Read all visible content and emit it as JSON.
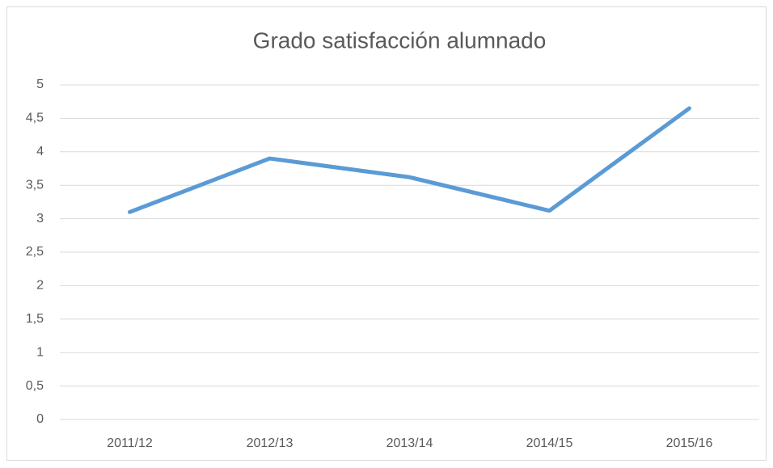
{
  "chart_data": {
    "type": "line",
    "title": "Grado satisfacción alumnado",
    "categories": [
      "2011/12",
      "2012/13",
      "2013/14",
      "2014/15",
      "2015/16"
    ],
    "series": [
      {
        "name": "Grado satisfacción alumnado",
        "color": "#5b9bd5",
        "values": [
          3.1,
          3.9,
          3.62,
          3.12,
          4.65
        ]
      }
    ],
    "ylim": [
      0,
      5
    ],
    "yticks": [
      0,
      {
        "value": 0.5,
        "label": "0,5"
      },
      1,
      {
        "value": 1.5,
        "label": "1,5"
      },
      2,
      {
        "value": 2.5,
        "label": "2,5"
      },
      3,
      {
        "value": 3.5,
        "label": "3,5"
      },
      4,
      {
        "value": 4.5,
        "label": "4,5"
      },
      5
    ],
    "grid": true
  }
}
